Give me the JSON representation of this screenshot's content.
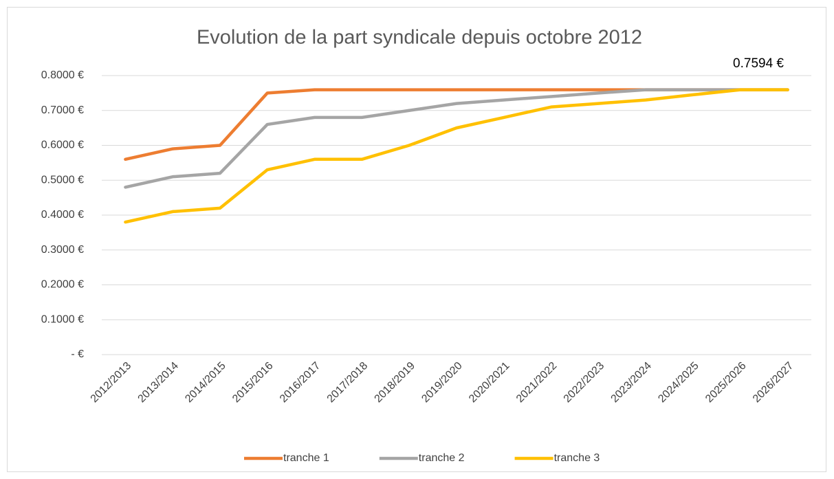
{
  "chart_data": {
    "type": "line",
    "title": "Evolution de la part syndicale depuis octobre 2012",
    "annotation": "0.7594 €",
    "categories": [
      "2012/2013",
      "2013/2014",
      "2014/2015",
      "2015/2016",
      "2016/2017",
      "2017/2018",
      "2018/2019",
      "2019/2020",
      "2020/2021",
      "2021/2022",
      "2022/2023",
      "2023/2024",
      "2024/2025",
      "2025/2026",
      "2026/2027"
    ],
    "series": [
      {
        "name": "tranche 1",
        "color": "#ed7d31",
        "values": [
          0.56,
          0.59,
          0.6,
          0.75,
          0.7594,
          0.7594,
          0.7594,
          0.7594,
          0.7594,
          0.7594,
          0.7594,
          0.7594,
          0.7594,
          0.7594,
          0.7594
        ]
      },
      {
        "name": "tranche 2",
        "color": "#a5a5a5",
        "values": [
          0.48,
          0.51,
          0.52,
          0.66,
          0.68,
          0.68,
          0.7,
          0.72,
          0.73,
          0.74,
          0.75,
          0.7594,
          0.7594,
          0.7594,
          0.7594
        ]
      },
      {
        "name": "tranche 3",
        "color": "#ffc000",
        "values": [
          0.38,
          0.41,
          0.42,
          0.53,
          0.56,
          0.56,
          0.6,
          0.65,
          0.68,
          0.71,
          0.72,
          0.73,
          0.745,
          0.7594,
          0.7594
        ]
      }
    ],
    "ylim": [
      0,
      0.8
    ],
    "yticks": [
      {
        "value": 0,
        "label": "-   €"
      },
      {
        "value": 0.1,
        "label": "0.1000 €"
      },
      {
        "value": 0.2,
        "label": "0.2000 €"
      },
      {
        "value": 0.3,
        "label": "0.3000 €"
      },
      {
        "value": 0.4,
        "label": "0.4000 €"
      },
      {
        "value": 0.5,
        "label": "0.5000 €"
      },
      {
        "value": 0.6,
        "label": "0.6000 €"
      },
      {
        "value": 0.7,
        "label": "0.7000 €"
      },
      {
        "value": 0.8,
        "label": "0.8000 €"
      }
    ],
    "grid": true,
    "legend": "bottom"
  }
}
